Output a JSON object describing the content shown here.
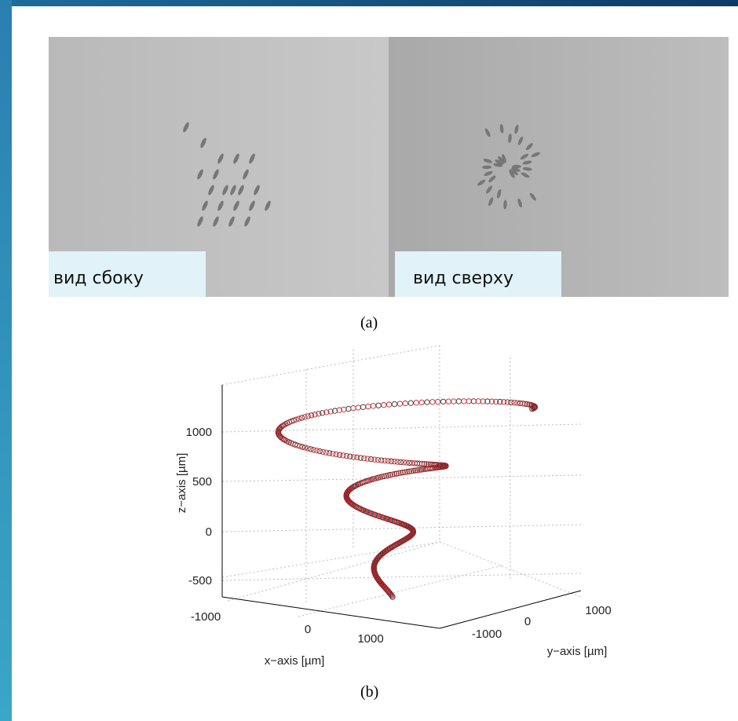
{
  "figure_a": {
    "left_caption": "вид сбоку",
    "right_caption": "вид сверху",
    "label": "(a)"
  },
  "figure_b": {
    "z_axis_label": "z−axis [µm]",
    "x_axis_label": "x−axis [µm]",
    "y_axis_label": "y−axis [µm]",
    "z_ticks": [
      1000,
      500,
      0,
      -500
    ],
    "x_ticks": [
      -1000,
      0,
      1000
    ],
    "y_ticks": [
      -1000,
      0,
      1000
    ],
    "label": "(b)"
  }
}
